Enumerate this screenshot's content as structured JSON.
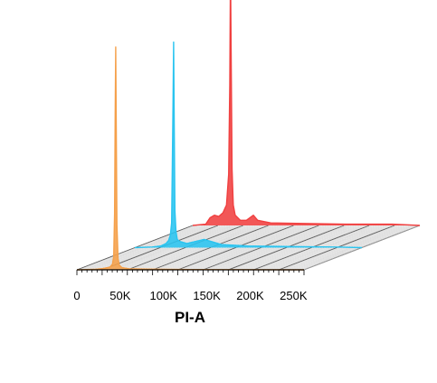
{
  "chart_data": {
    "type": "area",
    "style": "3D staggered offset histogram overlay",
    "xlabel": "PI-A",
    "x_ticks": [
      0,
      50000,
      100000,
      150000,
      200000,
      250000
    ],
    "x_tick_labels": [
      "0",
      "50K",
      "100K",
      "150K",
      "200K",
      "250K"
    ],
    "xlim": [
      0,
      262144
    ],
    "grid": "diagonal depth lines on floor plane",
    "series": [
      {
        "color": "#f5a04a",
        "points": [
          [
            0,
            0
          ],
          [
            20000,
            0.2
          ],
          [
            30000,
            0.6
          ],
          [
            38000,
            1.2
          ],
          [
            41000,
            2.5
          ],
          [
            42500,
            6
          ],
          [
            43500,
            25
          ],
          [
            44200,
            70
          ],
          [
            44800,
            100
          ],
          [
            45400,
            65
          ],
          [
            46200,
            20
          ],
          [
            47500,
            5
          ],
          [
            49000,
            2
          ],
          [
            52000,
            1
          ],
          [
            60000,
            0.5
          ],
          [
            80000,
            0.3
          ],
          [
            100000,
            0.2
          ],
          [
            130000,
            0.1
          ],
          [
            262144,
            0
          ]
        ]
      },
      {
        "color": "#29c4f0",
        "points": [
          [
            0,
            0
          ],
          [
            20000,
            0.3
          ],
          [
            30000,
            0.8
          ],
          [
            36000,
            2
          ],
          [
            39000,
            3.5
          ],
          [
            41000,
            6
          ],
          [
            42500,
            12
          ],
          [
            43300,
            40
          ],
          [
            44100,
            70
          ],
          [
            44800,
            100
          ],
          [
            45500,
            60
          ],
          [
            46300,
            18
          ],
          [
            47500,
            8
          ],
          [
            49000,
            4
          ],
          [
            52000,
            3
          ],
          [
            60000,
            2
          ],
          [
            70000,
            3
          ],
          [
            80000,
            4
          ],
          [
            88000,
            3
          ],
          [
            100000,
            1.5
          ],
          [
            130000,
            0.8
          ],
          [
            180000,
            0.5
          ],
          [
            230000,
            0.3
          ],
          [
            262144,
            0
          ]
        ]
      },
      {
        "color": "#f04040",
        "points": [
          [
            0,
            0
          ],
          [
            15000,
            0.5
          ],
          [
            20000,
            3
          ],
          [
            25000,
            4
          ],
          [
            30000,
            3.5
          ],
          [
            35000,
            5
          ],
          [
            39000,
            8
          ],
          [
            41500,
            20
          ],
          [
            42800,
            55
          ],
          [
            43600,
            100
          ],
          [
            44400,
            65
          ],
          [
            45400,
            22
          ],
          [
            46800,
            8
          ],
          [
            49000,
            4
          ],
          [
            55000,
            2
          ],
          [
            62000,
            2
          ],
          [
            70000,
            4
          ],
          [
            75000,
            2
          ],
          [
            90000,
            1
          ],
          [
            120000,
            0.8
          ],
          [
            180000,
            0.5
          ],
          [
            230000,
            0.5
          ],
          [
            262144,
            0
          ]
        ]
      }
    ]
  }
}
